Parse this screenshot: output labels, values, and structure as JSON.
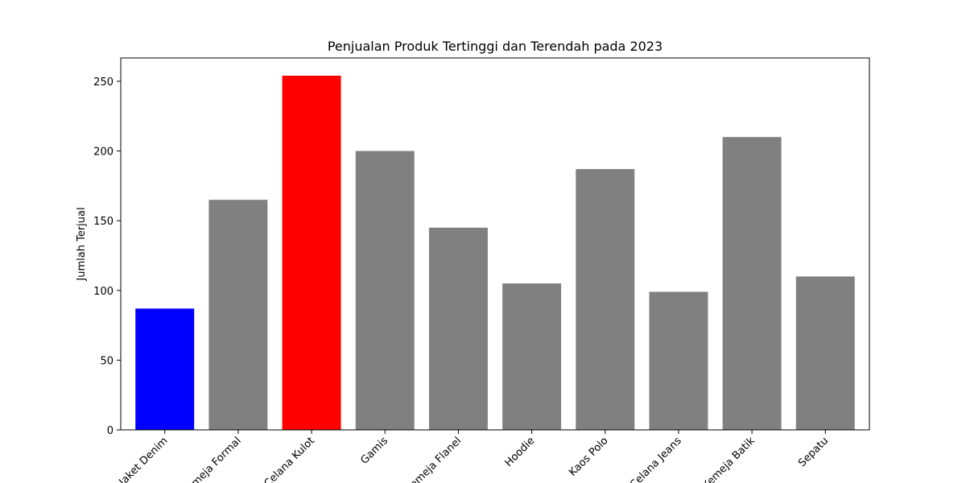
{
  "chart_data": {
    "type": "bar",
    "title": "Penjualan Produk Tertinggi dan Terendah pada 2023",
    "xlabel": "",
    "ylabel": "Jumlah Terjual",
    "categories": [
      "Jaket Denim",
      "Kemeja Formal",
      "Celana Kulot",
      "Gamis",
      "Kemeja Flanel",
      "Hoodie",
      "Kaos Polo",
      "Celana Jeans",
      "Kemeja Batik",
      "Sepatu"
    ],
    "values": [
      87,
      165,
      254,
      200,
      145,
      105,
      187,
      99,
      210,
      110
    ],
    "bar_colors": [
      "#0000ff",
      "#808080",
      "#ff0000",
      "#808080",
      "#808080",
      "#808080",
      "#808080",
      "#808080",
      "#808080",
      "#808080"
    ],
    "ylim": [
      0,
      266.7
    ],
    "yticks": [
      0,
      50,
      100,
      150,
      200,
      250
    ],
    "grid": false,
    "legend": "none"
  }
}
